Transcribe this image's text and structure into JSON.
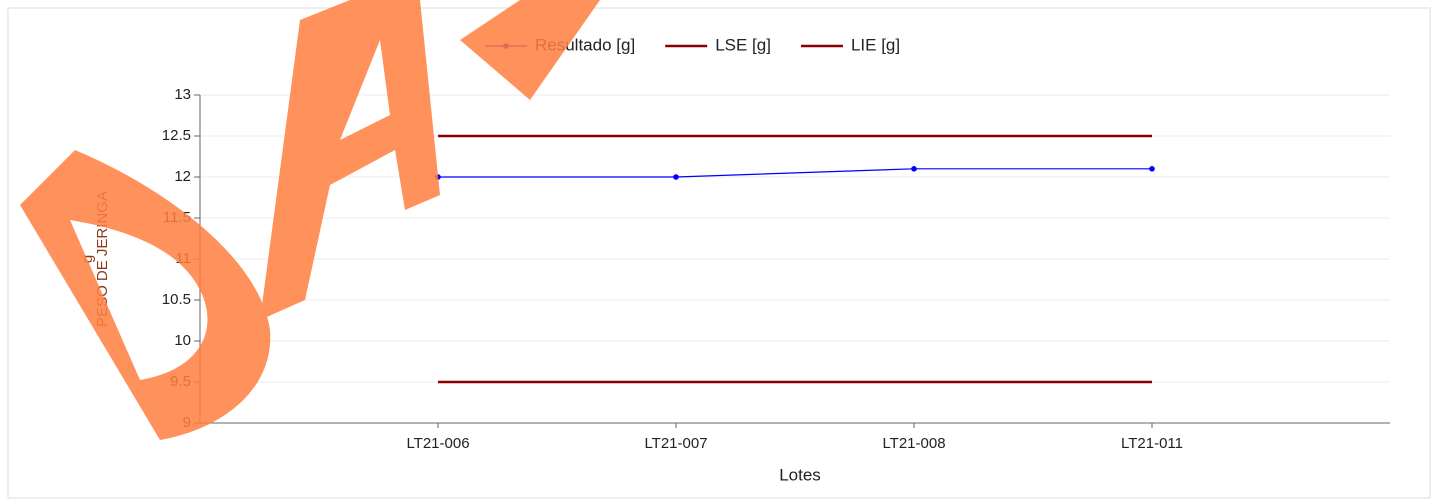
{
  "chart_data": {
    "type": "line",
    "categories": [
      "LT21-006",
      "LT21-007",
      "LT21-008",
      "LT21-011"
    ],
    "series": [
      {
        "name": "Resultado [g]",
        "color": "#0000ff",
        "values": [
          12,
          12,
          12.1,
          12.1
        ]
      },
      {
        "name": "LSE [g]",
        "color": "#8b0000",
        "values": [
          12.5,
          12.5,
          12.5,
          12.5
        ]
      },
      {
        "name": "LIE [g]",
        "color": "#8b0000",
        "values": [
          9.5,
          9.5,
          9.5,
          9.5
        ]
      }
    ],
    "ylabel": [
      "g",
      "PESO DE JERINGA"
    ],
    "xlabel": "Lotes",
    "ylim": [
      9,
      13
    ],
    "yticks": [
      9,
      9.5,
      10,
      10.5,
      11,
      11.5,
      12,
      12.5,
      13
    ],
    "grid": true,
    "legend": "top"
  }
}
